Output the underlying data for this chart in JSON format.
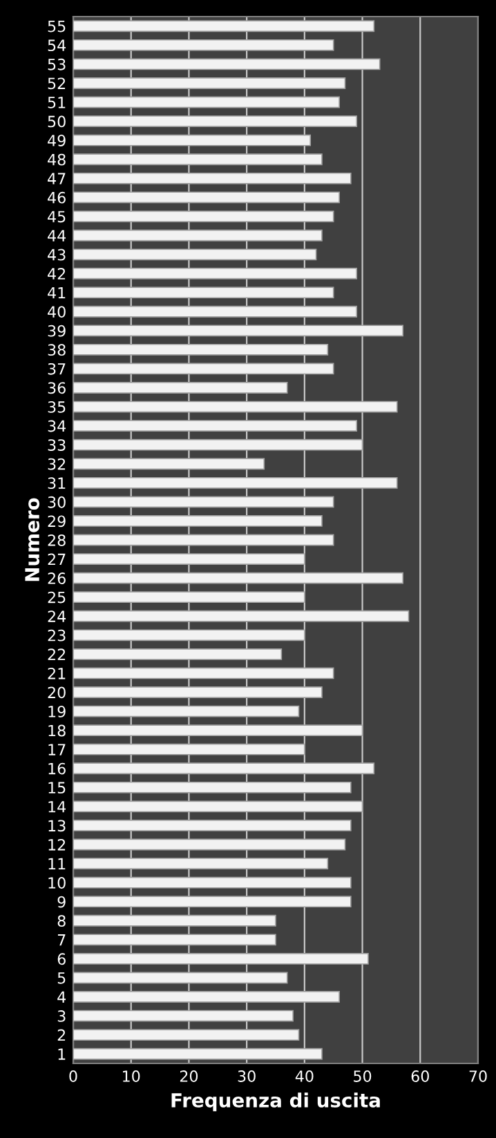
{
  "chart_data": {
    "type": "bar",
    "orientation": "horizontal",
    "xlabel": "Frequenza di uscita",
    "ylabel": "Numero",
    "categories": [
      "55",
      "54",
      "53",
      "52",
      "51",
      "50",
      "49",
      "48",
      "47",
      "46",
      "45",
      "44",
      "43",
      "42",
      "41",
      "40",
      "39",
      "38",
      "37",
      "36",
      "35",
      "34",
      "33",
      "32",
      "31",
      "30",
      "29",
      "28",
      "27",
      "26",
      "25",
      "24",
      "23",
      "22",
      "21",
      "20",
      "19",
      "18",
      "17",
      "16",
      "15",
      "14",
      "13",
      "12",
      "11",
      "10",
      "9",
      "8",
      "7",
      "6",
      "5",
      "4",
      "3",
      "2",
      "1"
    ],
    "values": [
      52,
      45,
      53,
      47,
      46,
      49,
      41,
      43,
      48,
      46,
      45,
      43,
      42,
      49,
      45,
      49,
      57,
      44,
      45,
      37,
      56,
      49,
      50,
      33,
      56,
      45,
      43,
      45,
      40,
      57,
      40,
      58,
      40,
      36,
      45,
      43,
      39,
      50,
      40,
      52,
      48,
      50,
      48,
      47,
      44,
      48,
      48,
      35,
      35,
      51,
      37,
      46,
      38,
      39,
      43
    ],
    "color": "#f2f2f2",
    "xlim": [
      0,
      70
    ],
    "xticks": [
      0,
      10,
      20,
      30,
      40,
      50,
      60,
      70
    ],
    "grid": "x"
  }
}
